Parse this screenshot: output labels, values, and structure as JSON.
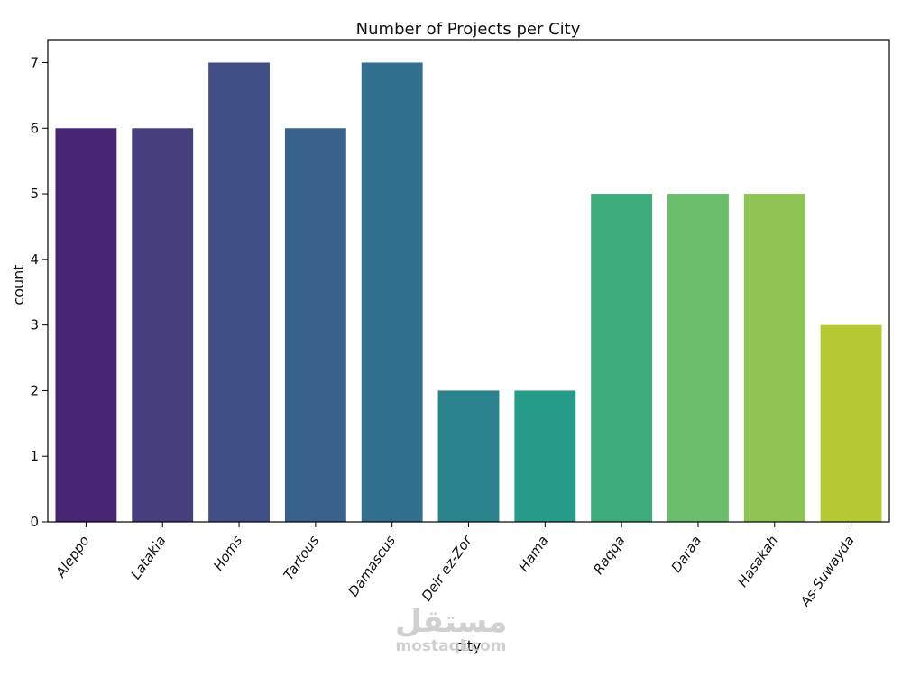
{
  "chart_data": {
    "type": "bar",
    "title": "Number of Projects per City",
    "xlabel": "city",
    "ylabel": "count",
    "categories": [
      "Aleppo",
      "Latakia",
      "Homs",
      "Tartous",
      "Damascus",
      "Deir ez-Zor",
      "Hama",
      "Raqqa",
      "Daraa",
      "Hasakah",
      "As-Suwayda"
    ],
    "values": [
      6,
      6,
      7,
      6,
      7,
      2,
      2,
      5,
      5,
      5,
      3
    ],
    "colors": [
      "#482475",
      "#463f7e",
      "#414f87",
      "#38618b",
      "#31708e",
      "#2a838c",
      "#269b89",
      "#3dab7a",
      "#6abd6a",
      "#8dc454",
      "#b5ca32"
    ],
    "ylim": [
      0,
      7.35
    ],
    "yticks": [
      0,
      1,
      2,
      3,
      4,
      5,
      6,
      7
    ],
    "grid": false
  },
  "watermark": {
    "arabic": "مستقل",
    "latin": "mostaql.com"
  }
}
